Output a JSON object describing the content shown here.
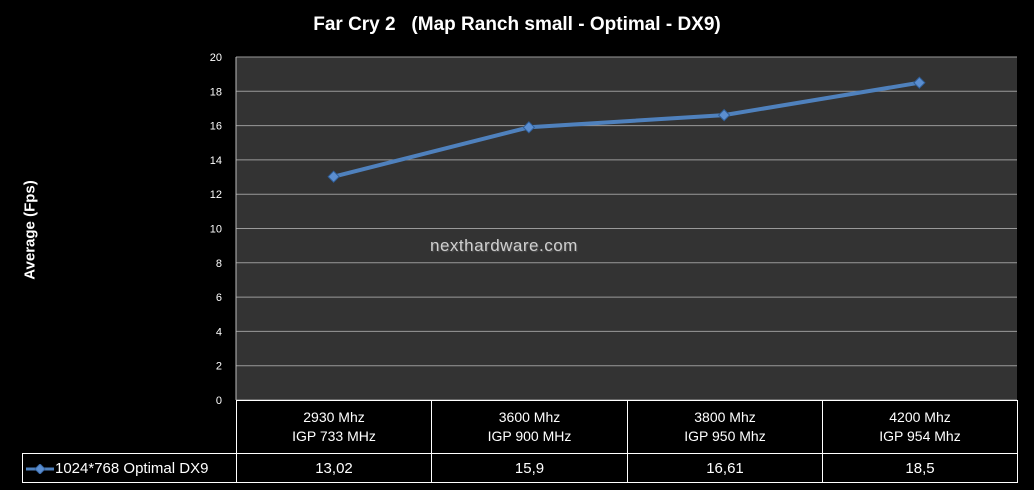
{
  "watermark": "nexthardware.com",
  "colors": {
    "background": "#000000",
    "plot_area": "#333333",
    "series": "#4f81bd",
    "series_marker": "#5b8ed0",
    "grid": "#9a9a9a"
  },
  "chart_data": {
    "type": "line",
    "title": "Far Cry 2   (Map Ranch small - Optimal - DX9)",
    "ylabel": "Average (Fps)",
    "xlabel": "",
    "ylim": [
      0,
      20
    ],
    "ytick_step": 2,
    "yticks": [
      "0",
      "2",
      "4",
      "6",
      "8",
      "10",
      "12",
      "14",
      "16",
      "18",
      "20"
    ],
    "grid": true,
    "legend": "in data table",
    "categories": [
      {
        "line1": "2930 Mhz",
        "line2": "IGP 733 MHz"
      },
      {
        "line1": "3600 Mhz",
        "line2": "IGP 900 MHz"
      },
      {
        "line1": "3800 Mhz",
        "line2": "IGP 950 Mhz"
      },
      {
        "line1": "4200 Mhz",
        "line2": "IGP 954 Mhz"
      }
    ],
    "series": [
      {
        "name": "1024*768 Optimal DX9",
        "values": [
          13.02,
          15.9,
          16.61,
          18.5
        ],
        "labels": [
          "13,02",
          "15,9",
          "16,61",
          "18,5"
        ]
      }
    ]
  }
}
